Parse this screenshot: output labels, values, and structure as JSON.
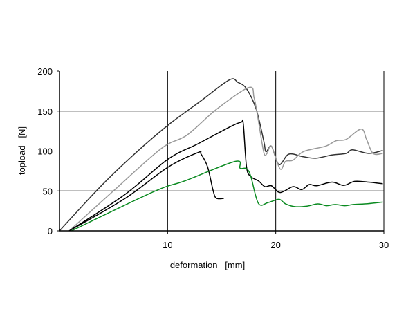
{
  "chart_data": {
    "type": "line",
    "title": "",
    "xlabel": "deformation   [mm]",
    "ylabel": "topload   [N]",
    "xlim": [
      0,
      30
    ],
    "ylim": [
      0,
      200
    ],
    "xticks": [
      10,
      20,
      30
    ],
    "yticks": [
      0,
      50,
      100,
      150,
      200
    ],
    "xtick_labels": [
      "10",
      "20",
      "30"
    ],
    "ytick_labels": [
      "0",
      "50",
      "100",
      "150",
      "200"
    ],
    "grid": true,
    "legend": "none",
    "series": [
      {
        "name": "dark-gray",
        "color": "#333333",
        "points": [
          [
            0,
            0
          ],
          [
            3.9,
            57
          ],
          [
            7.2,
            99.5
          ],
          [
            10.1,
            133
          ],
          [
            13,
            162
          ],
          [
            15.7,
            189
          ],
          [
            16.5,
            186
          ],
          [
            17.3,
            178
          ],
          [
            18.2,
            152
          ],
          [
            18.9,
            112
          ],
          [
            19.1,
            99
          ],
          [
            19.6,
            106
          ],
          [
            20.3,
            83
          ],
          [
            21.2,
            96
          ],
          [
            22.5,
            93
          ],
          [
            23.7,
            91
          ],
          [
            25.2,
            95
          ],
          [
            26.5,
            97
          ],
          [
            27.1,
            101.5
          ],
          [
            28.6,
            97
          ],
          [
            29.9,
            100.7
          ]
        ]
      },
      {
        "name": "light-gray",
        "color": "#999999",
        "points": [
          [
            0.9,
            0
          ],
          [
            4.95,
            49.6
          ],
          [
            9.4,
            103
          ],
          [
            11.8,
            120
          ],
          [
            14.5,
            152
          ],
          [
            17.5,
            179.5
          ],
          [
            18.0,
            166.5
          ],
          [
            18.4,
            137.6
          ],
          [
            18.9,
            98
          ],
          [
            19.2,
            97
          ],
          [
            19.6,
            106
          ],
          [
            20.4,
            77.6
          ],
          [
            20.9,
            87
          ],
          [
            21.6,
            88.6
          ],
          [
            22.6,
            99.5
          ],
          [
            24.6,
            106
          ],
          [
            25.6,
            113
          ],
          [
            26.5,
            114.5
          ],
          [
            27.9,
            127.5
          ],
          [
            28.4,
            114.5
          ],
          [
            29.0,
            97
          ],
          [
            29.9,
            97
          ]
        ]
      },
      {
        "name": "black-long",
        "color": "#000000",
        "points": [
          [
            0.9,
            0
          ],
          [
            6.0,
            45
          ],
          [
            10.06,
            90
          ],
          [
            12.8,
            109
          ],
          [
            15.8,
            130.5
          ],
          [
            16.8,
            136
          ],
          [
            17.0,
            134
          ],
          [
            17.3,
            80
          ],
          [
            17.7,
            68
          ],
          [
            18.4,
            62.6
          ],
          [
            19.0,
            55.4
          ],
          [
            19.6,
            56.5
          ],
          [
            20.4,
            48
          ],
          [
            21.6,
            55.4
          ],
          [
            22.4,
            51.7
          ],
          [
            23.1,
            58
          ],
          [
            23.8,
            56.5
          ],
          [
            25.2,
            61
          ],
          [
            26.3,
            57
          ],
          [
            27.3,
            62
          ],
          [
            28.6,
            61
          ],
          [
            29.9,
            59
          ]
        ]
      },
      {
        "name": "black-short",
        "color": "#000000",
        "points": [
          [
            0.9,
            0
          ],
          [
            6.0,
            40
          ],
          [
            10.06,
            80
          ],
          [
            12.8,
            98
          ],
          [
            13.1,
            96
          ],
          [
            13.7,
            80
          ],
          [
            14.2,
            51
          ],
          [
            14.5,
            41
          ],
          [
            15.2,
            40.7
          ]
        ]
      },
      {
        "name": "green",
        "color": "#0a8a20",
        "points": [
          [
            1.1,
            0
          ],
          [
            8.8,
            49.6
          ],
          [
            11.6,
            62.6
          ],
          [
            16.25,
            87
          ],
          [
            16.7,
            78.5
          ],
          [
            17.3,
            78
          ],
          [
            17.7,
            68
          ],
          [
            18.4,
            34.3
          ],
          [
            19.3,
            35.5
          ],
          [
            20.3,
            39.5
          ],
          [
            20.9,
            33.8
          ],
          [
            21.8,
            30.3
          ],
          [
            22.9,
            31
          ],
          [
            23.9,
            33.8
          ],
          [
            24.7,
            31.5
          ],
          [
            25.5,
            33
          ],
          [
            26.4,
            31.5
          ],
          [
            27.2,
            33
          ],
          [
            28.5,
            34
          ],
          [
            29.9,
            36
          ]
        ]
      }
    ]
  }
}
